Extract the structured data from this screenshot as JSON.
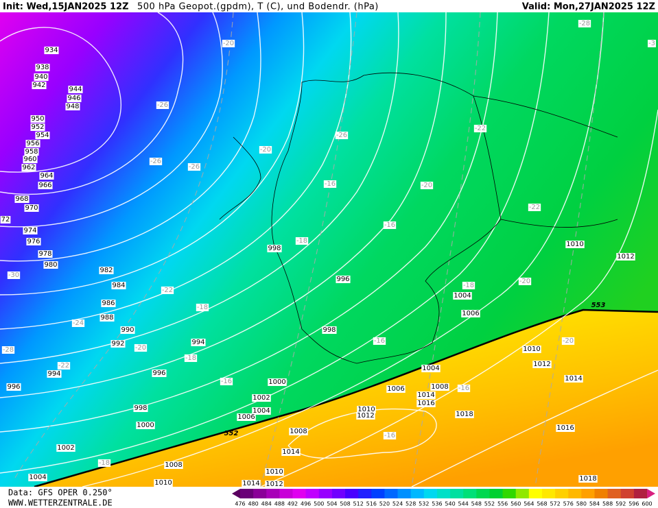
{
  "header": {
    "init": "Init: Wed,15JAN2025 12Z",
    "title": "500 hPa Geopot.(gpdm), T (C), und Bodendr. (hPa)",
    "valid": "Valid: Mon,27JAN2025 12Z"
  },
  "footer": {
    "source": "Data: GFS OPER 0.250°",
    "site": "WWW.WETTERZENTRALE.DE"
  },
  "colorbar": {
    "levels": [
      476,
      480,
      484,
      488,
      492,
      496,
      500,
      504,
      508,
      512,
      516,
      520,
      524,
      528,
      532,
      536,
      540,
      544,
      548,
      552,
      556,
      560,
      564,
      568,
      572,
      576,
      580,
      584,
      588,
      592,
      596,
      600
    ],
    "colors": [
      "#5a0060",
      "#6a0078",
      "#8a0098",
      "#a800b8",
      "#c800d8",
      "#e000f0",
      "#c000ff",
      "#9800ff",
      "#7000ff",
      "#4800ff",
      "#2020ff",
      "#0040ff",
      "#0068ff",
      "#0090ff",
      "#00b8ff",
      "#00d8f0",
      "#00e0c8",
      "#00e0a0",
      "#00e078",
      "#00d850",
      "#00d030",
      "#30d800",
      "#90e800",
      "#ffff00",
      "#ffe800",
      "#ffd000",
      "#ffb800",
      "#ffa000",
      "#f08000",
      "#e06020",
      "#d04030",
      "#b02040",
      "#d82080"
    ]
  },
  "map": {
    "isobar_labels": [
      "934",
      "938",
      "940",
      "942",
      "944",
      "946",
      "948",
      "950",
      "952",
      "954",
      "956",
      "958",
      "960",
      "962",
      "964",
      "966",
      "968",
      "970",
      "72",
      "974",
      "976",
      "978",
      "980",
      "982",
      "984",
      "986",
      "988",
      "990",
      "992",
      "994",
      "994",
      "996",
      "996",
      "998",
      "1000",
      "1000",
      "1002",
      "1004",
      "1006",
      "1002",
      "1004",
      "1008",
      "1010",
      "1008",
      "1014",
      "1010",
      "1014",
      "1012",
      "998",
      "996",
      "998",
      "1004",
      "1006",
      "1008",
      "1014",
      "1016",
      "1010",
      "1012",
      "1018",
      "1004",
      "1006",
      "1010",
      "1012",
      "1010",
      "1012",
      "1014",
      "1016",
      "1018"
    ],
    "temperature_labels": [
      "-20",
      "-26",
      "-28",
      "-3",
      "-26",
      "-20",
      "-26",
      "-26",
      "-22",
      "-16",
      "-20",
      "-22",
      "-16",
      "-18",
      "-30",
      "-22",
      "-18",
      "-18",
      "-20",
      "-24",
      "-20",
      "-16",
      "-18",
      "-22",
      "-20",
      "-16",
      "-16",
      "-16",
      "-18",
      "-28"
    ],
    "geopotential_labels": [
      "552",
      "553"
    ]
  }
}
